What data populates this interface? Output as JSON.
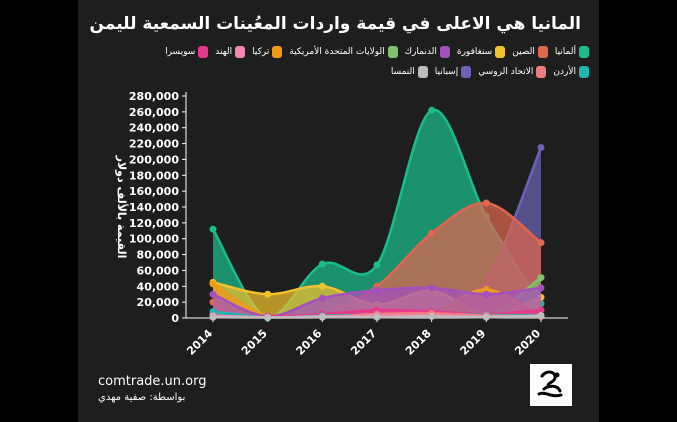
{
  "title": "المانيا هي الاعلى في قيمة واردات المعُينات السمعية لليمن",
  "source": "comtrade.un.org",
  "credit": "بواسطة: صفية مهدي",
  "logo_icon": "ear-hand-logo",
  "chart_data": {
    "type": "area",
    "title": "المانيا هي الاعلى في قيمة واردات المعُينات السمعية لليمن",
    "ylabel": "القيمة بالألف دولار",
    "xlabel": "",
    "x": [
      "2014",
      "2015",
      "2016",
      "2017",
      "2018",
      "2019",
      "2020"
    ],
    "ylim": [
      0,
      280000
    ],
    "yticks": [
      "0",
      "20,000",
      "40,000",
      "60,000",
      "80,000",
      "100,000",
      "120,000",
      "140,000",
      "160,000",
      "180,000",
      "200,000",
      "220,000",
      "240,000",
      "260,000",
      "280,000"
    ],
    "smooth": true,
    "legend_position": "top",
    "grid": false,
    "series": [
      {
        "name": "ألمانيا",
        "color": "#1abc8c",
        "values": [
          112000,
          0,
          68000,
          67000,
          262000,
          128000,
          18000
        ]
      },
      {
        "name": "الصين",
        "color": "#e0664e",
        "values": [
          20000,
          2000,
          5000,
          40000,
          107000,
          145000,
          95000
        ]
      },
      {
        "name": "سنغافورة",
        "color": "#f2c12e",
        "values": [
          45000,
          30000,
          40000,
          17000,
          34000,
          5000,
          26000
        ]
      },
      {
        "name": "الدنمارك",
        "color": "#a44fc0",
        "values": [
          30000,
          2000,
          25000,
          35000,
          38000,
          30000,
          38000
        ]
      },
      {
        "name": "الولايات المتحدة الأمريكية",
        "color": "#7fc46a",
        "values": [
          5000,
          2000,
          3000,
          5000,
          5000,
          2000,
          51000
        ]
      },
      {
        "name": "تركيا",
        "color": "#f09a1c",
        "values": [
          43000,
          2000,
          2000,
          5000,
          8000,
          36000,
          3000
        ]
      },
      {
        "name": "الهند",
        "color": "#f28ab3",
        "values": [
          3000,
          1000,
          2000,
          3000,
          3000,
          2000,
          2000
        ]
      },
      {
        "name": "سويسرا",
        "color": "#e8388a",
        "values": [
          5000,
          2000,
          5000,
          10000,
          8000,
          5000,
          10000
        ]
      },
      {
        "name": "الأردن",
        "color": "#1fb5b5",
        "values": [
          8000,
          1000,
          3000,
          4000,
          5000,
          4000,
          3000
        ]
      },
      {
        "name": "الاتحاد الروسي",
        "color": "#f47b7b",
        "values": [
          2000,
          1000,
          1000,
          5000,
          6000,
          3000,
          2000
        ]
      },
      {
        "name": "إسبانيا",
        "color": "#6b63b5",
        "values": [
          1000,
          1000,
          2000,
          3000,
          20000,
          50000,
          215000
        ]
      },
      {
        "name": "النمسا",
        "color": "#bdbdbd",
        "values": [
          1000,
          500,
          1000,
          1000,
          2000,
          1000,
          3000
        ]
      }
    ]
  }
}
